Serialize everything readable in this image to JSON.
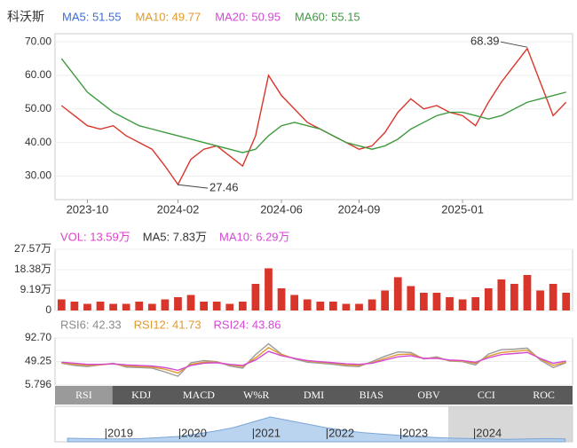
{
  "header": {
    "title": "科沃斯",
    "legend": [
      {
        "label": "MA5: 51.55",
        "color": "#3b6fd6"
      },
      {
        "label": "MA10: 49.77",
        "color": "#e09a2e"
      },
      {
        "label": "MA20: 50.95",
        "color": "#d448d4"
      },
      {
        "label": "MA60: 55.15",
        "color": "#3f9a3f"
      }
    ]
  },
  "chart_data": [
    {
      "type": "line",
      "categories": [
        null,
        null,
        "2023-10",
        null,
        null,
        null,
        null,
        null,
        null,
        "2024-02",
        null,
        null,
        null,
        null,
        null,
        null,
        null,
        "2024-06",
        null,
        null,
        null,
        null,
        null,
        "2024-09",
        null,
        null,
        null,
        null,
        null,
        null,
        null,
        "2025-01",
        null,
        null,
        null,
        null,
        null,
        null,
        null,
        null
      ],
      "series": [
        {
          "color": "#d9362b",
          "values": [
            51,
            48,
            45,
            44,
            45,
            42,
            40,
            38,
            33,
            27.5,
            35,
            38,
            39,
            36,
            33,
            42,
            60,
            54,
            50,
            46,
            44,
            42,
            40,
            38,
            39,
            43,
            49,
            53,
            50,
            51,
            49,
            48,
            45,
            52,
            58,
            63,
            68,
            58,
            48,
            52
          ]
        },
        {
          "color": "#3f9a3f",
          "values": [
            65,
            60,
            55,
            52,
            49,
            47,
            45,
            44,
            43,
            42,
            41,
            40,
            39,
            38,
            37,
            38,
            42,
            45,
            46,
            45,
            44,
            42,
            40,
            39,
            38,
            39,
            41,
            44,
            46,
            48,
            49,
            49,
            48,
            47,
            48,
            50,
            52,
            53,
            54,
            55
          ]
        }
      ],
      "ylim": [
        23,
        72.4
      ],
      "yticks": [
        {
          "value": 70,
          "label": "70.00"
        },
        {
          "value": 60,
          "label": "60.00"
        },
        {
          "value": 50,
          "label": "50.00"
        },
        {
          "value": 40,
          "label": "40.00"
        },
        {
          "value": 30,
          "label": "30.00"
        }
      ],
      "annotations": [
        {
          "label": "68.39",
          "value": 68.39
        },
        {
          "label": "27.46",
          "value": 27.46
        }
      ]
    },
    {
      "type": "bar",
      "legend": [
        {
          "label": "VOL: 13.59万",
          "color": "#e040c8"
        },
        {
          "label": "MA5: 7.83万",
          "color": "#333333"
        },
        {
          "label": "MA10: 6.29万",
          "color": "#d448d4"
        }
      ],
      "values": [
        5,
        4,
        3,
        4,
        3,
        3,
        4,
        3,
        5,
        6,
        7,
        4,
        4,
        3,
        4,
        12,
        19,
        10,
        7,
        5,
        4,
        4,
        3,
        3,
        5,
        9,
        15,
        11,
        8,
        8,
        6,
        5,
        6,
        10,
        14,
        12,
        16,
        9,
        12,
        8
      ],
      "color": "#d9362b",
      "ylim": [
        0,
        27.57
      ],
      "yticks": [
        {
          "value": 27.57,
          "label": "27.57万"
        },
        {
          "value": 18.38,
          "label": "18.38万"
        },
        {
          "value": 9.19,
          "label": "9.19万"
        },
        0
      ]
    },
    {
      "type": "line",
      "legend": [
        {
          "label": "RSI6: 42.33",
          "color": "#8a8a8a"
        },
        {
          "label": "RSI12: 41.73",
          "color": "#e09a2e"
        },
        {
          "label": "RSI24: 43.86",
          "color": "#d448d4"
        }
      ],
      "series": [
        {
          "name": "RSI6",
          "color": "#9a9a9a",
          "values": [
            46,
            42,
            40,
            43,
            46,
            39,
            38,
            37,
            30,
            22,
            47,
            51,
            49,
            41,
            37,
            62,
            82,
            63,
            54,
            48,
            46,
            44,
            41,
            40,
            49,
            59,
            67,
            66,
            54,
            58,
            50,
            49,
            43,
            63,
            71,
            72,
            74,
            52,
            38,
            47
          ]
        },
        {
          "name": "RSI12",
          "color": "#e09a2e",
          "values": [
            47,
            44,
            42,
            43,
            45,
            41,
            40,
            39,
            35,
            28,
            44,
            48,
            48,
            43,
            40,
            56,
            75,
            62,
            55,
            50,
            48,
            46,
            43,
            42,
            47,
            55,
            62,
            63,
            55,
            56,
            51,
            50,
            46,
            59,
            66,
            68,
            70,
            54,
            42,
            48
          ]
        },
        {
          "name": "RSI24",
          "color": "#d448d4",
          "values": [
            48,
            46,
            44,
            44,
            45,
            43,
            42,
            41,
            38,
            33,
            42,
            46,
            47,
            44,
            42,
            52,
            68,
            60,
            55,
            51,
            49,
            47,
            45,
            44,
            46,
            52,
            58,
            60,
            55,
            55,
            52,
            51,
            48,
            56,
            62,
            64,
            66,
            55,
            46,
            50
          ]
        }
      ],
      "ylim": [
        5.796,
        92.7
      ],
      "yticks": [
        {
          "value": 92.7,
          "label": "92.70"
        },
        49.25,
        5.796
      ]
    },
    {
      "type": "area",
      "x": [
        2018.5,
        2018.75,
        2019,
        2019.25,
        2019.5,
        2019.75,
        2020,
        2020.25,
        2020.5,
        2020.75,
        2021,
        2021.25,
        2021.5,
        2021.75,
        2022,
        2022.25,
        2022.5,
        2022.75,
        2023,
        2023.25,
        2023.5,
        2023.75,
        2024,
        2024.25,
        2024.5,
        2024.75,
        2025,
        2025.25
      ],
      "values": [
        10,
        9,
        8,
        8,
        9,
        12,
        15,
        22,
        30,
        40,
        55,
        70,
        60,
        50,
        40,
        32,
        26,
        22,
        18,
        15,
        12,
        10,
        9,
        8,
        7,
        8,
        9,
        8
      ],
      "color": "#a9c8ea",
      "xlim": [
        2018.33,
        2025.35
      ],
      "ylim": [
        0,
        100
      ],
      "xticks": [
        {
          "value": 2019,
          "label": "|2019"
        },
        {
          "value": 2020,
          "label": "|2020"
        },
        {
          "value": 2021,
          "label": "|2021"
        },
        {
          "value": 2022,
          "label": "|2022"
        },
        {
          "value": 2023,
          "label": "|2023"
        },
        {
          "value": 2024,
          "label": "|2024"
        }
      ]
    }
  ],
  "tabs": [
    "RSI",
    "KDJ",
    "MACD",
    "W%R",
    "DMI",
    "BIAS",
    "OBV",
    "CCI",
    "ROC"
  ]
}
